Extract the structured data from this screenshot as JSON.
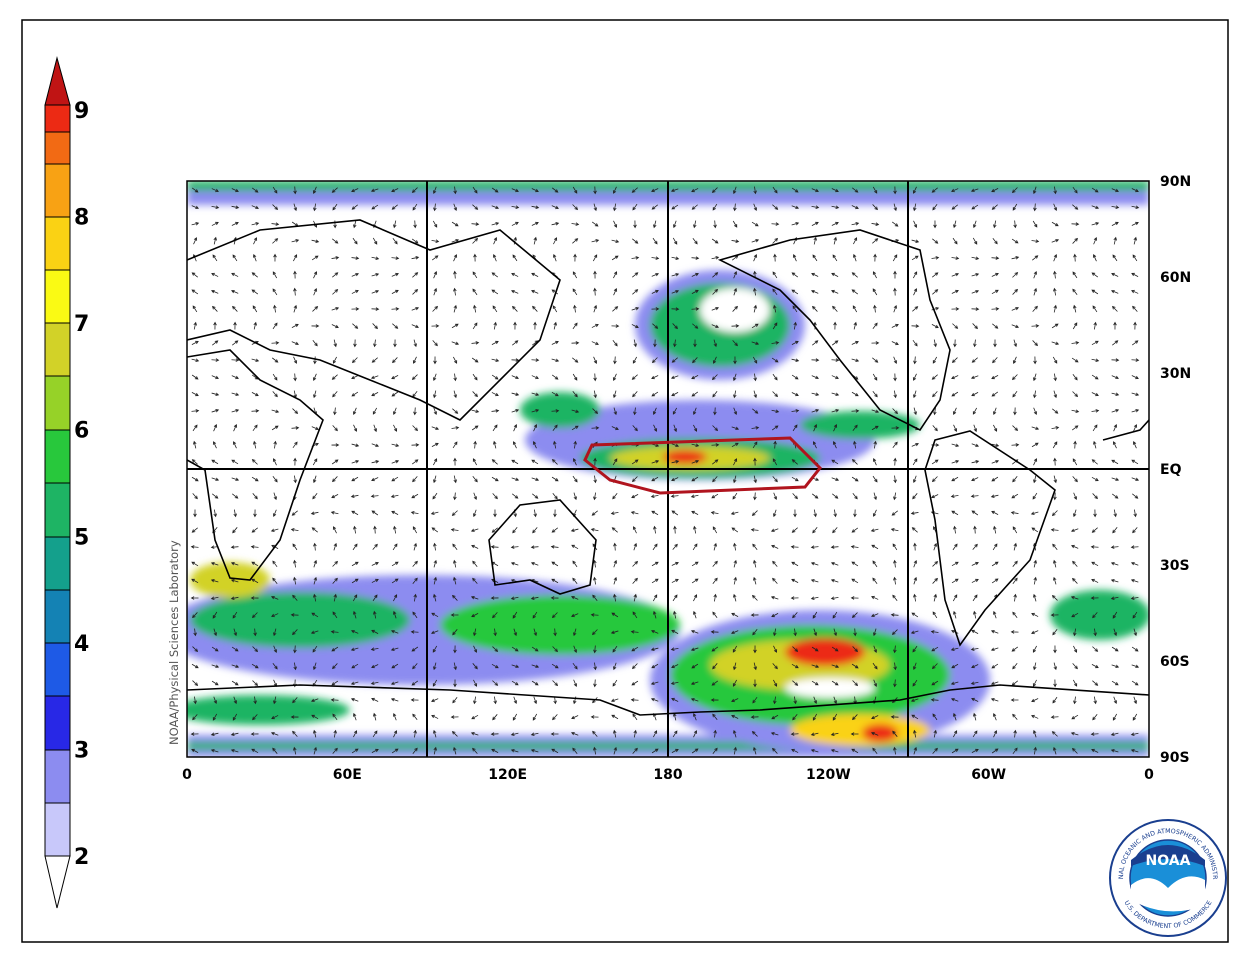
{
  "colorbar": {
    "labels": [
      2,
      3,
      4,
      5,
      6,
      7,
      8,
      9
    ]
  },
  "map": {
    "lon_labels": [
      "0",
      "60E",
      "120E",
      "180",
      "120W",
      "60W",
      "0"
    ],
    "lat_labels": [
      "90N",
      "60N",
      "30N",
      "EQ",
      "30S",
      "60S",
      "90S"
    ],
    "credit": "NOAA/Physical Sciences Laboratory"
  },
  "logo": {
    "name": "NOAA",
    "agency": "NATIONAL OCEANIC AND ATMOSPHERIC ADMINISTRATION",
    "department": "U.S. DEPARTMENT OF COMMERCE"
  }
}
